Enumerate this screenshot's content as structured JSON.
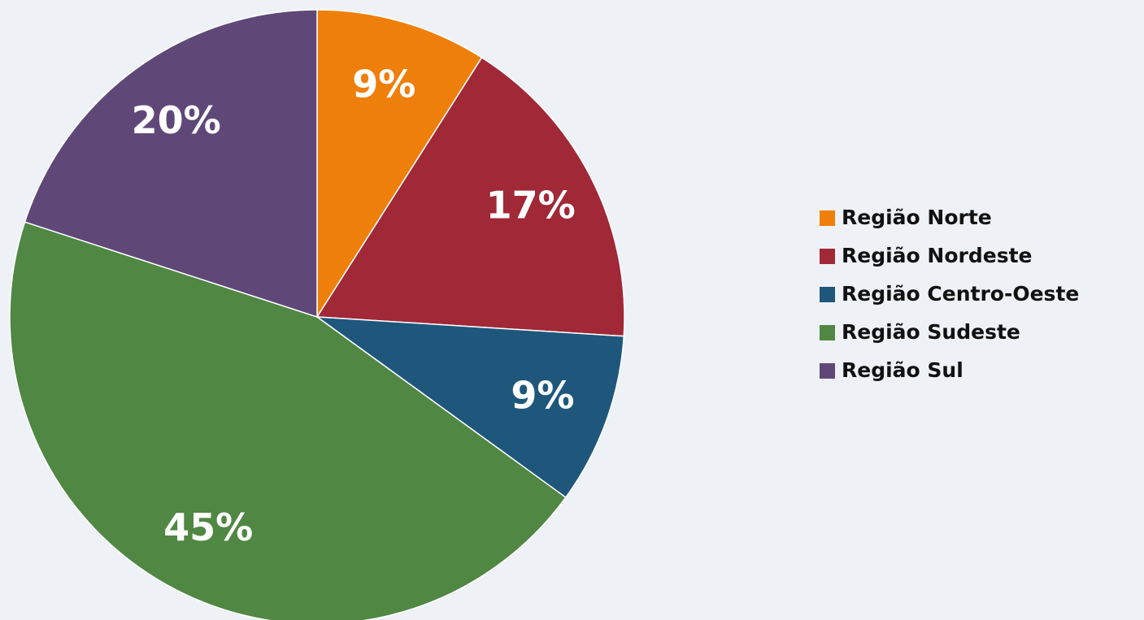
{
  "chart_data": {
    "type": "pie",
    "categories": [
      "Região Norte",
      "Região Nordeste",
      "Região Centro-Oeste",
      "Região Sudeste",
      "Região Sul"
    ],
    "values": [
      9,
      17,
      9,
      45,
      20
    ],
    "value_labels": [
      "9%",
      "17%",
      "9%",
      "45%",
      "20%"
    ],
    "colors": [
      "#ef7f0b",
      "#a02837",
      "#1f577c",
      "#4f8743",
      "#5f4878"
    ],
    "legend": "right"
  }
}
